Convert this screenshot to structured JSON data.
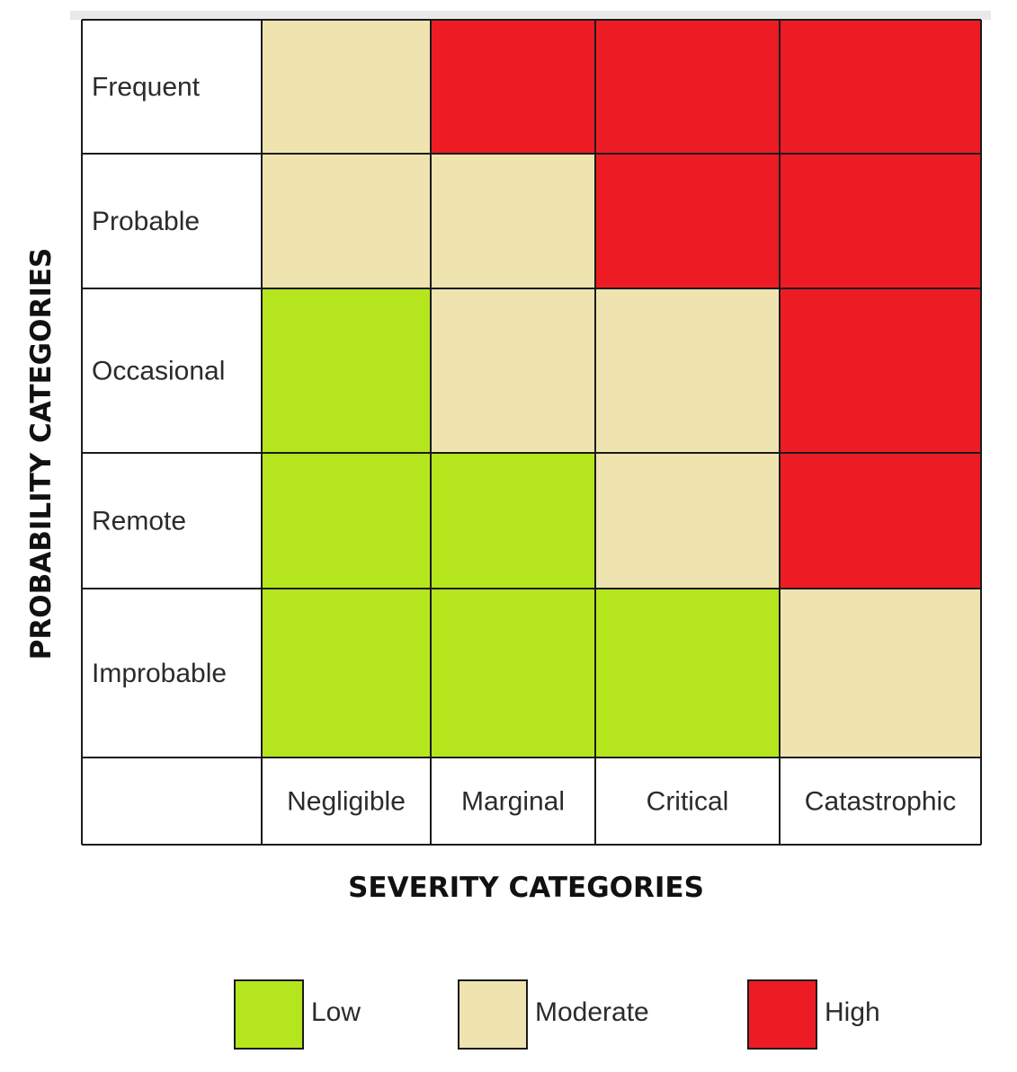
{
  "chart_data": {
    "type": "heatmap",
    "title": "",
    "xlabel": "SEVERITY CATEGORIES",
    "ylabel": "PROBABILITY CATEGORIES",
    "x_categories": [
      "Negligible",
      "Marginal",
      "Critical",
      "Catastrophic"
    ],
    "y_categories": [
      "Frequent",
      "Probable",
      "Occasional",
      "Remote",
      "Improbable"
    ],
    "cells": [
      [
        "Moderate",
        "High",
        "High",
        "High"
      ],
      [
        "Moderate",
        "Moderate",
        "High",
        "High"
      ],
      [
        "Low",
        "Moderate",
        "Moderate",
        "High"
      ],
      [
        "Low",
        "Low",
        "Moderate",
        "High"
      ],
      [
        "Low",
        "Low",
        "Low",
        "Moderate"
      ]
    ],
    "levels": [
      {
        "name": "Low",
        "color": "#b5e61d"
      },
      {
        "name": "Moderate",
        "color": "#efe4b0"
      },
      {
        "name": "High",
        "color": "#ed1c24"
      }
    ],
    "legend_position": "bottom"
  }
}
